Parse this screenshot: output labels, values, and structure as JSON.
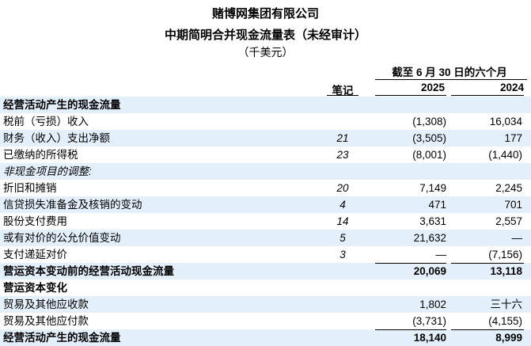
{
  "header": {
    "company": "赌博网集团有限公司",
    "statement": "中期简明合并现金流量表（未经审计）",
    "unit": "（千美元）",
    "period": "截至 6 月 30 日的六个月",
    "note_col": "笔记",
    "year1": "2025",
    "year2": "2024"
  },
  "rows": [
    {
      "label": "经营活动产生的现金流量",
      "note": "",
      "v1": "",
      "v2": "",
      "style": "section"
    },
    {
      "label": "税前（亏损）收入",
      "note": "",
      "v1": "(1,308)",
      "v2": "16,034",
      "style": "normal"
    },
    {
      "label": "财务（收入）支出净额",
      "note": "21",
      "v1": "(3,505)",
      "v2": "177",
      "style": "normal"
    },
    {
      "label": "已缴纳的所得税",
      "note": "23",
      "v1": "(8,001)",
      "v2": "(1,440)",
      "style": "normal"
    },
    {
      "label": "非现金项目的调整:",
      "note": "",
      "v1": "",
      "v2": "",
      "style": "italic"
    },
    {
      "label": "折旧和摊销",
      "note": "20",
      "v1": "7,149",
      "v2": "2,245",
      "style": "normal"
    },
    {
      "label": "信贷损失准备金及核销的变动",
      "note": "4",
      "v1": "471",
      "v2": "701",
      "style": "normal"
    },
    {
      "label": "股份支付费用",
      "note": "14",
      "v1": "3,631",
      "v2": "2,557",
      "style": "normal"
    },
    {
      "label": "或有对价的公允价值变动",
      "note": "5",
      "v1": "21,632",
      "v2": "—",
      "style": "normal"
    },
    {
      "label": "支付递延对价",
      "note": "3",
      "v1": "—",
      "v2": "(7,156)",
      "style": "normal"
    },
    {
      "label": "营运资本变动前的经营活动现金流量",
      "note": "",
      "v1": "20,069",
      "v2": "13,118",
      "style": "total"
    },
    {
      "label": "营运资本变化",
      "note": "",
      "v1": "",
      "v2": "",
      "style": "section"
    },
    {
      "label": "贸易及其他应收款",
      "note": "",
      "v1": "1,802",
      "v2": "三十六",
      "style": "normal"
    },
    {
      "label": "贸易及其他应付款",
      "note": "",
      "v1": "(3,731)",
      "v2": "(4,155)",
      "style": "normal"
    },
    {
      "label": "经营活动产生的现金流量",
      "note": "",
      "v1": "18,140",
      "v2": "8,999",
      "style": "total"
    }
  ]
}
